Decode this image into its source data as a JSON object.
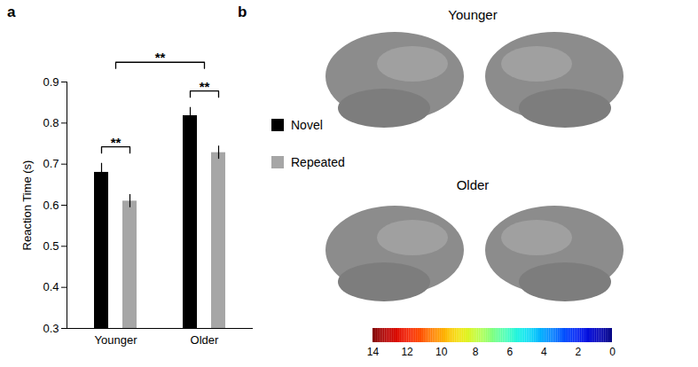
{
  "chart_data": [
    {
      "type": "bar",
      "panel_label": "a",
      "categories": [
        "Younger",
        "Older"
      ],
      "series": [
        {
          "name": "Novel",
          "color": "#000000",
          "values": [
            0.68,
            0.818
          ],
          "errors": [
            0.022,
            0.02
          ]
        },
        {
          "name": "Repeated",
          "color": "#a6a6a6",
          "values": [
            0.61,
            0.728
          ],
          "errors": [
            0.016,
            0.016
          ]
        }
      ],
      "y_label": "Reaction Time (s)",
      "ylim": [
        0.3,
        0.9
      ],
      "yticks": [
        0.3,
        0.4,
        0.5,
        0.6,
        0.7,
        0.8,
        0.9
      ],
      "legend": "right",
      "significance": [
        {
          "label": "**",
          "between": [
            {
              "category": "Younger",
              "series": "Novel"
            },
            {
              "category": "Younger",
              "series": "Repeated"
            }
          ]
        },
        {
          "label": "**",
          "between": [
            {
              "category": "Older",
              "series": "Novel"
            },
            {
              "category": "Older",
              "series": "Repeated"
            }
          ]
        },
        {
          "label": "**",
          "between": [
            {
              "category": "Younger"
            },
            {
              "category": "Older"
            }
          ]
        }
      ]
    },
    {
      "type": "brain_map",
      "panel_label": "b",
      "labels": [
        "Younger",
        "Older"
      ],
      "colorbar_range": [
        14,
        0
      ],
      "colorbar_ticks": [
        14,
        12,
        10,
        8,
        6,
        4,
        2,
        0
      ]
    }
  ]
}
